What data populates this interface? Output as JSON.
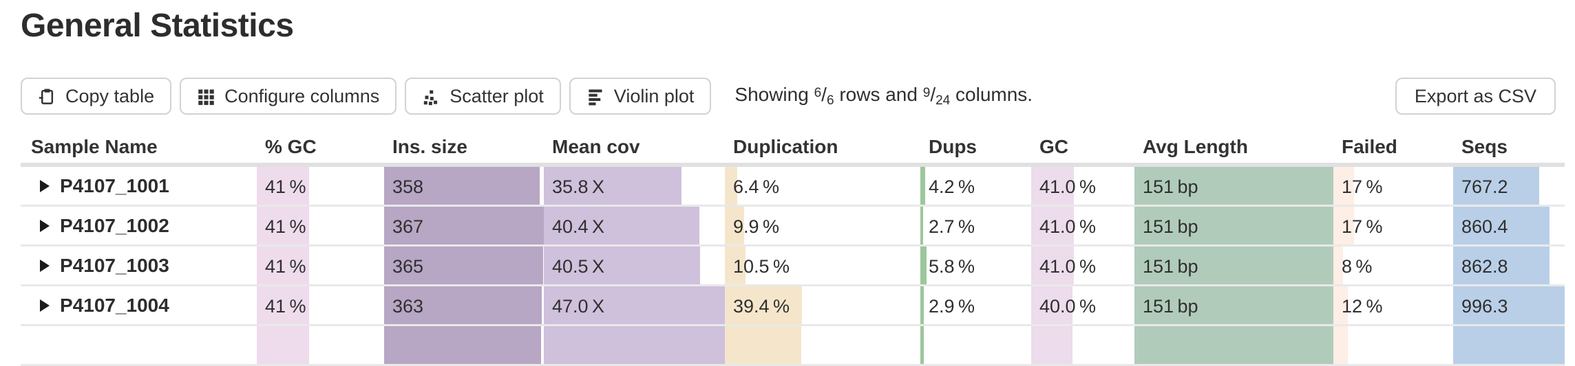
{
  "page": {
    "title": "General Statistics"
  },
  "toolbar": {
    "buttons": [
      {
        "label": "Copy table",
        "icon": "clipboard-icon"
      },
      {
        "label": "Configure columns",
        "icon": "grid-icon"
      },
      {
        "label": "Scatter plot",
        "icon": "scatter-icon"
      },
      {
        "label": "Violin plot",
        "icon": "violin-icon"
      }
    ],
    "showing": {
      "prefix": "Showing ",
      "rows_shown": "6",
      "rows_total": "6",
      "middle": " rows and ",
      "cols_shown": "9",
      "cols_total": "24",
      "suffix": " columns."
    },
    "export_label": "Export as CSV"
  },
  "colors": {
    "pct_gc": "#eedcec",
    "ins_size": "#b7a6c4",
    "mean_cov": "#cfc0dc",
    "duplication": "#f5e6cb",
    "dups": "#9cc69c",
    "gc": "#eddcec",
    "avg_length": "#b1cbba",
    "failed": "#fdeee6",
    "seqs": "#b9cfe7",
    "divider": "#e9e9e9",
    "icon": "#333333"
  },
  "table": {
    "columns": [
      {
        "key": "sample",
        "label": "Sample Name"
      },
      {
        "key": "pct_gc",
        "label": "% GC"
      },
      {
        "key": "ins_size",
        "label": "Ins. size"
      },
      {
        "key": "mean_cov",
        "label": "Mean cov"
      },
      {
        "key": "duplication",
        "label": "Duplication"
      },
      {
        "key": "dups",
        "label": "Dups"
      },
      {
        "key": "gc",
        "label": "GC"
      },
      {
        "key": "avg_length",
        "label": "Avg Length"
      },
      {
        "key": "failed",
        "label": "Failed"
      },
      {
        "key": "seqs",
        "label": "Seqs"
      }
    ],
    "rows": [
      {
        "cells": [
          {
            "text": "P4107_1001"
          },
          {
            "text": "41 %",
            "frac": 0.41
          },
          {
            "text": "358",
            "frac": 0.975
          },
          {
            "text": "35.8 X",
            "frac": 0.762
          },
          {
            "text": "6.4 %",
            "frac": 0.064
          },
          {
            "text": "4.2 %",
            "frac": 0.042
          },
          {
            "text": "41.0 %",
            "frac": 0.41
          },
          {
            "text": "151 bp",
            "frac": 1.0
          },
          {
            "text": "17 %",
            "frac": 0.17
          },
          {
            "text": "767.2",
            "frac": 0.77
          }
        ]
      },
      {
        "cells": [
          {
            "text": "P4107_1002"
          },
          {
            "text": "41 %",
            "frac": 0.41
          },
          {
            "text": "367",
            "frac": 1.0
          },
          {
            "text": "40.4 X",
            "frac": 0.86
          },
          {
            "text": "9.9 %",
            "frac": 0.099
          },
          {
            "text": "2.7 %",
            "frac": 0.027
          },
          {
            "text": "41.0 %",
            "frac": 0.41
          },
          {
            "text": "151 bp",
            "frac": 1.0
          },
          {
            "text": "17 %",
            "frac": 0.17
          },
          {
            "text": "860.4",
            "frac": 0.864
          }
        ]
      },
      {
        "cells": [
          {
            "text": "P4107_1003"
          },
          {
            "text": "41 %",
            "frac": 0.41
          },
          {
            "text": "365",
            "frac": 0.995
          },
          {
            "text": "40.5 X",
            "frac": 0.862
          },
          {
            "text": "10.5 %",
            "frac": 0.105
          },
          {
            "text": "5.8 %",
            "frac": 0.058
          },
          {
            "text": "41.0 %",
            "frac": 0.41
          },
          {
            "text": "151 bp",
            "frac": 1.0
          },
          {
            "text": "8 %",
            "frac": 0.08
          },
          {
            "text": "862.8",
            "frac": 0.866
          }
        ]
      },
      {
        "cells": [
          {
            "text": "P4107_1004"
          },
          {
            "text": "41 %",
            "frac": 0.41
          },
          {
            "text": "363",
            "frac": 0.989
          },
          {
            "text": "47.0 X",
            "frac": 1.0
          },
          {
            "text": "39.4 %",
            "frac": 0.394
          },
          {
            "text": "2.9 %",
            "frac": 0.029
          },
          {
            "text": "40.0 %",
            "frac": 0.4
          },
          {
            "text": "151 bp",
            "frac": 1.0
          },
          {
            "text": "12 %",
            "frac": 0.12
          },
          {
            "text": "996.3",
            "frac": 1.0
          }
        ]
      }
    ],
    "partial_row": {
      "cells": [
        {
          "text": ""
        },
        {
          "text": "",
          "frac": 0.41
        },
        {
          "text": "",
          "frac": 0.983
        },
        {
          "text": "",
          "frac": 1.0
        },
        {
          "text": "",
          "frac": 0.39
        },
        {
          "text": "",
          "frac": 0.03
        },
        {
          "text": "",
          "frac": 0.4
        },
        {
          "text": "",
          "frac": 1.0
        },
        {
          "text": "",
          "frac": 0.12
        },
        {
          "text": "",
          "frac": 1.0
        }
      ]
    }
  }
}
